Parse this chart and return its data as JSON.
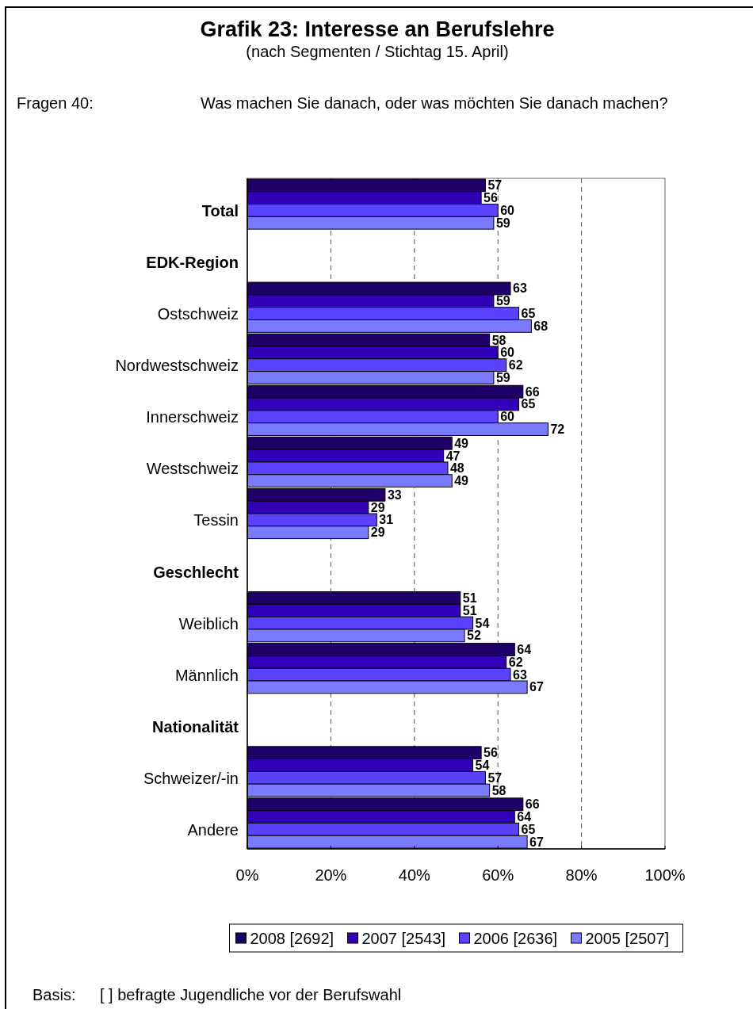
{
  "chart_data": {
    "type": "bar",
    "orientation": "horizontal",
    "title": "Grafik 23: Interesse an Berufslehre",
    "subtitle": "(nach Segmenten / Stichtag 15. April)",
    "annotations": [
      "Fragen 40:",
      "Was machen Sie danach, oder was möchten Sie danach machen?",
      "Basis:",
      "[ ] befragte Jugendliche vor der Berufswahl"
    ],
    "categories": [
      "Total",
      "EDK-Region",
      "Ostschweiz",
      "Nordwestschweiz",
      "Innerschweiz",
      "Westschweiz",
      "Tessin",
      "Geschlecht",
      "Weiblich",
      "Männlich",
      "Nationalität",
      "Schweizer/-in",
      "Andere"
    ],
    "series": [
      {
        "name": "2008 [2692]",
        "color": "#1e0068",
        "values": [
          57,
          null,
          63,
          58,
          66,
          49,
          33,
          null,
          51,
          64,
          null,
          56,
          66
        ]
      },
      {
        "name": "2007 [2543]",
        "color": "#3200b8",
        "values": [
          56,
          null,
          59,
          60,
          65,
          47,
          29,
          null,
          51,
          62,
          null,
          54,
          64
        ]
      },
      {
        "name": "2006 [2636]",
        "color": "#5a42ff",
        "values": [
          60,
          null,
          65,
          62,
          60,
          48,
          31,
          null,
          54,
          63,
          null,
          57,
          65
        ]
      },
      {
        "name": "2005 [2507]",
        "color": "#7a7aff",
        "values": [
          59,
          null,
          68,
          59,
          72,
          49,
          29,
          null,
          52,
          67,
          null,
          58,
          67
        ]
      }
    ],
    "xlim": [
      0,
      100
    ],
    "xticks": [
      {
        "value": 0,
        "label": "0%"
      },
      {
        "value": 20,
        "label": "20%"
      },
      {
        "value": 40,
        "label": "40%"
      },
      {
        "value": 60,
        "label": "60%"
      },
      {
        "value": 80,
        "label": "80%"
      },
      {
        "value": 100,
        "label": "100%"
      }
    ],
    "grid": "x",
    "legend": "bottom",
    "data_labels": true
  }
}
